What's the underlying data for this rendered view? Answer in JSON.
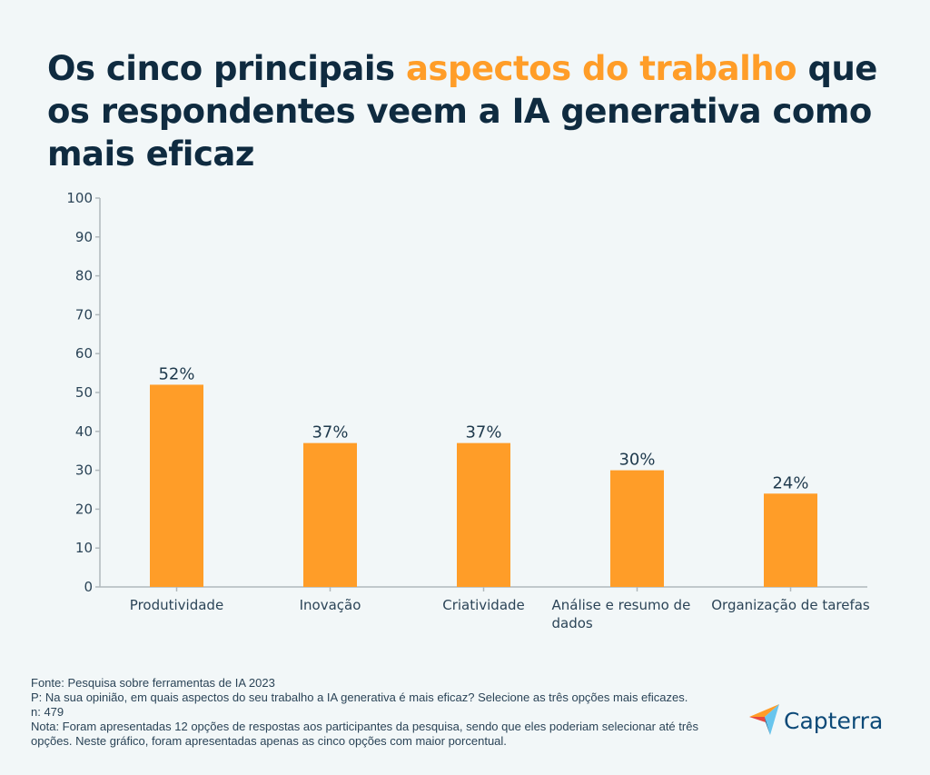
{
  "title": {
    "part1": "Os cinco principais ",
    "highlight": "aspectos do trabalho",
    "part2": " que os respondentes veem a IA generativa como mais eficaz"
  },
  "colors": {
    "bar": "#ff9d28",
    "title": "#0f2b40",
    "highlight": "#ff9d28",
    "background": "#f2f7f8",
    "axis": "#b0b8bc"
  },
  "chart_data": {
    "type": "bar",
    "title": "Os cinco principais aspectos do trabalho que os respondentes veem a IA generativa como mais eficaz",
    "xlabel": "",
    "ylabel": "",
    "ylim": [
      0,
      100
    ],
    "yticks": [
      0,
      10,
      20,
      30,
      40,
      50,
      60,
      70,
      80,
      90,
      100
    ],
    "categories": [
      [
        "Produtividade"
      ],
      [
        "Inovação"
      ],
      [
        "Criatividade"
      ],
      [
        "Análise e resumo de",
        "dados"
      ],
      [
        "Organização de tarefas"
      ]
    ],
    "values": [
      52,
      37,
      37,
      30,
      24
    ],
    "value_labels": [
      "52%",
      "37%",
      "37%",
      "30%",
      "24%"
    ],
    "grid": false,
    "legend": "none"
  },
  "footer": {
    "source": "Fonte: Pesquisa sobre ferramentas de IA 2023",
    "question": "P: Na sua opinião, em quais aspectos do seu trabalho a IA generativa é mais eficaz? Selecione as três opções mais eficazes.",
    "n": "n: 479",
    "note": "Nota: Foram apresentadas 12 opções de respostas aos participantes da pesquisa, sendo que eles poderiam selecionar até três opções. Neste gráfico, foram apresentadas apenas as cinco opções com maior porcentual."
  },
  "logo": {
    "text": "Capterra",
    "icon": "capterra-arrow-icon"
  }
}
